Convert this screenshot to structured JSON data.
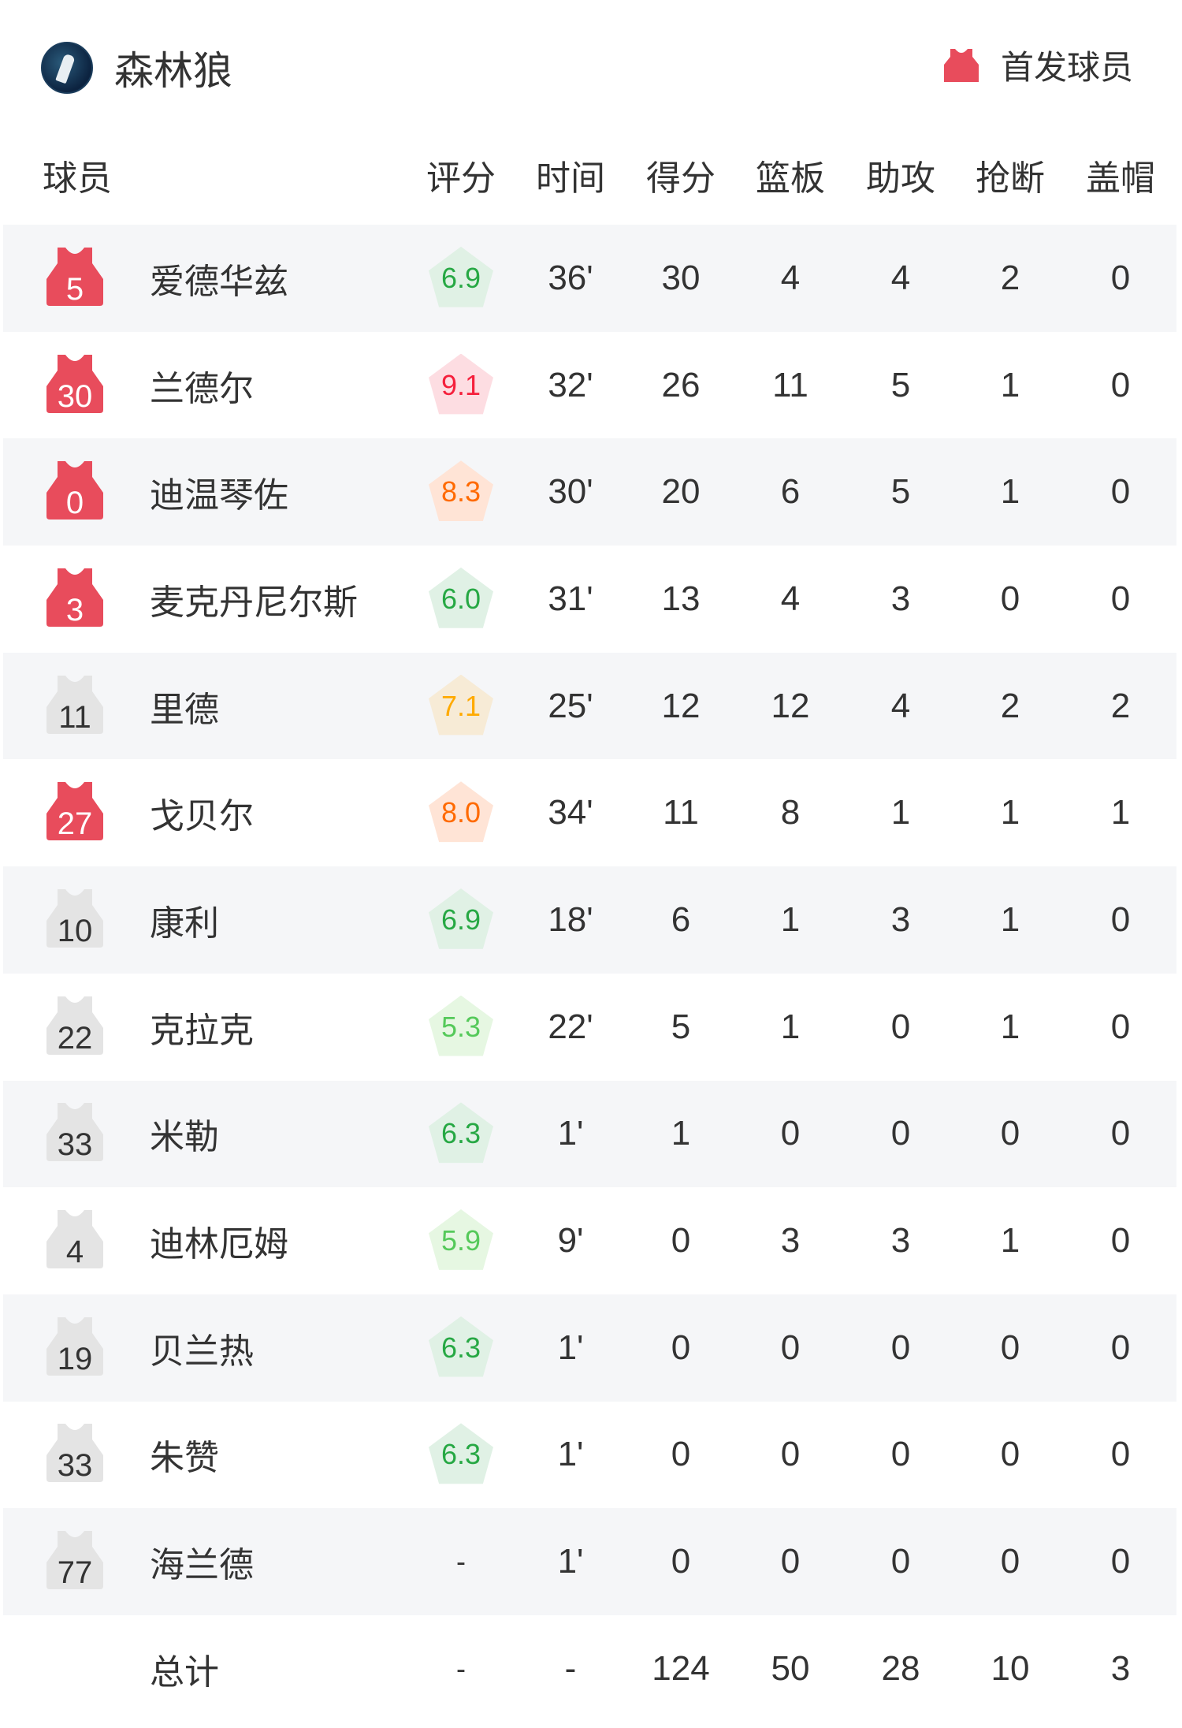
{
  "header": {
    "team": "森林狼",
    "legend_label": "首发球员",
    "starter_color": "#e84c5c",
    "bench_color": "#e4e4e4"
  },
  "columns": [
    "球员",
    "评分",
    "时间",
    "得分",
    "篮板",
    "助攻",
    "抢断",
    "盖帽"
  ],
  "players": [
    {
      "number": "5",
      "name": "爱德华兹",
      "starter": true,
      "rating": "6.9",
      "time": "36'",
      "pts": "30",
      "reb": "4",
      "ast": "4",
      "stl": "2",
      "blk": "0"
    },
    {
      "number": "30",
      "name": "兰德尔",
      "starter": true,
      "rating": "9.1",
      "time": "32'",
      "pts": "26",
      "reb": "11",
      "ast": "5",
      "stl": "1",
      "blk": "0"
    },
    {
      "number": "0",
      "name": "迪温琴佐",
      "starter": true,
      "rating": "8.3",
      "time": "30'",
      "pts": "20",
      "reb": "6",
      "ast": "5",
      "stl": "1",
      "blk": "0"
    },
    {
      "number": "3",
      "name": "麦克丹尼尔斯",
      "starter": true,
      "rating": "6.0",
      "time": "31'",
      "pts": "13",
      "reb": "4",
      "ast": "3",
      "stl": "0",
      "blk": "0"
    },
    {
      "number": "11",
      "name": "里德",
      "starter": false,
      "rating": "7.1",
      "time": "25'",
      "pts": "12",
      "reb": "12",
      "ast": "4",
      "stl": "2",
      "blk": "2"
    },
    {
      "number": "27",
      "name": "戈贝尔",
      "starter": true,
      "rating": "8.0",
      "time": "34'",
      "pts": "11",
      "reb": "8",
      "ast": "1",
      "stl": "1",
      "blk": "1"
    },
    {
      "number": "10",
      "name": "康利",
      "starter": false,
      "rating": "6.9",
      "time": "18'",
      "pts": "6",
      "reb": "1",
      "ast": "3",
      "stl": "1",
      "blk": "0"
    },
    {
      "number": "22",
      "name": "克拉克",
      "starter": false,
      "rating": "5.3",
      "time": "22'",
      "pts": "5",
      "reb": "1",
      "ast": "0",
      "stl": "1",
      "blk": "0"
    },
    {
      "number": "33",
      "name": "米勒",
      "starter": false,
      "rating": "6.3",
      "time": "1'",
      "pts": "1",
      "reb": "0",
      "ast": "0",
      "stl": "0",
      "blk": "0"
    },
    {
      "number": "4",
      "name": "迪林厄姆",
      "starter": false,
      "rating": "5.9",
      "time": "9'",
      "pts": "0",
      "reb": "3",
      "ast": "3",
      "stl": "1",
      "blk": "0"
    },
    {
      "number": "19",
      "name": "贝兰热",
      "starter": false,
      "rating": "6.3",
      "time": "1'",
      "pts": "0",
      "reb": "0",
      "ast": "0",
      "stl": "0",
      "blk": "0"
    },
    {
      "number": "33",
      "name": "朱赞",
      "starter": false,
      "rating": "6.3",
      "time": "1'",
      "pts": "0",
      "reb": "0",
      "ast": "0",
      "stl": "0",
      "blk": "0"
    },
    {
      "number": "77",
      "name": "海兰德",
      "starter": false,
      "rating": "-",
      "time": "1'",
      "pts": "0",
      "reb": "0",
      "ast": "0",
      "stl": "0",
      "blk": "0"
    }
  ],
  "total": {
    "name": "总计",
    "rating": "-",
    "time": "-",
    "pts": "124",
    "reb": "50",
    "ast": "28",
    "stl": "10",
    "blk": "3"
  },
  "rating_colors": {
    "9": {
      "fg": "#f5203c",
      "bg": "#fddde2"
    },
    "8": {
      "fg": "#ff6a00",
      "bg": "#ffe4d6"
    },
    "7": {
      "fg": "#ffaa00",
      "bg": "#f7ebd6"
    },
    "6": {
      "fg": "#27a844",
      "bg": "#e0f1e5"
    },
    "5": {
      "fg": "#55c95a",
      "bg": "#e6f7e2"
    }
  }
}
